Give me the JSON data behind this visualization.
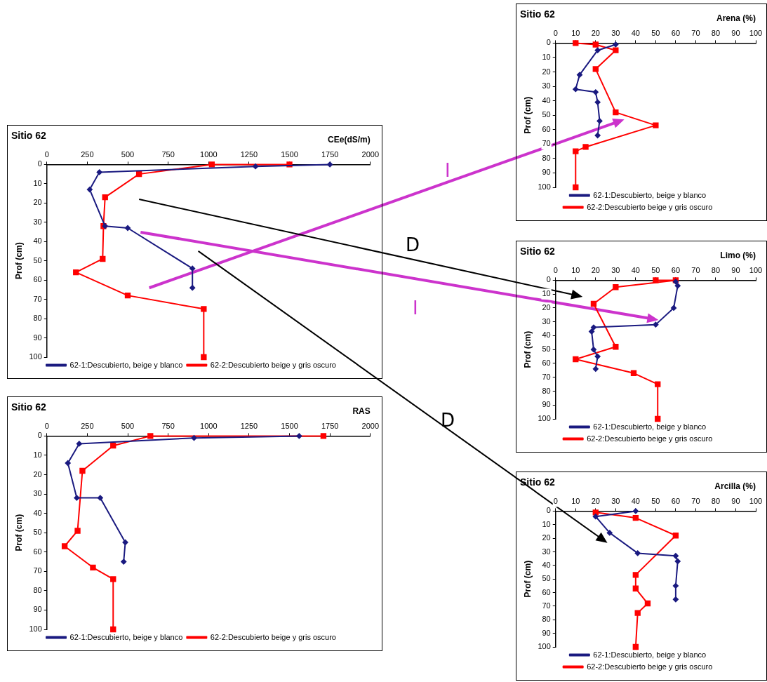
{
  "chart_data": [
    {
      "type": "line",
      "title": "Sitio 62",
      "xlabel": "Arena (%)",
      "ylabel": "Prof (cm)",
      "xlim": [
        0,
        100
      ],
      "xticks": [
        0,
        10,
        20,
        30,
        40,
        50,
        60,
        70,
        80,
        90,
        100
      ],
      "ylim": [
        100,
        0
      ],
      "yticks": [
        0,
        10,
        20,
        30,
        40,
        50,
        60,
        70,
        80,
        90,
        100
      ],
      "grid": false,
      "legend": "bottom",
      "series": [
        {
          "name": "62-1:Descubierto, beige y blanco",
          "color": "#1a1a80",
          "marker": "diamond",
          "x": [
            30,
            21,
            12,
            10,
            20,
            21,
            22,
            21
          ],
          "values": [
            1,
            5,
            22,
            32,
            34,
            41,
            54,
            64
          ]
        },
        {
          "name": "62-2:Descubierto beige y gris oscuro",
          "color": "#ff0000",
          "marker": "square",
          "x": [
            10,
            20,
            30,
            20,
            30,
            50,
            15,
            10,
            10
          ],
          "values": [
            0,
            1,
            5,
            18,
            48,
            57,
            72,
            75,
            100
          ]
        }
      ]
    },
    {
      "type": "line",
      "title": "Sitio 62",
      "xlabel": "CEe(dS/m)",
      "ylabel": "Prof (cm)",
      "xlim": [
        0,
        2000
      ],
      "xticks": [
        0,
        250,
        500,
        750,
        1000,
        1250,
        1500,
        1750,
        2000
      ],
      "ylim": [
        100,
        0
      ],
      "yticks": [
        0,
        10,
        20,
        30,
        40,
        50,
        60,
        70,
        80,
        90,
        100
      ],
      "grid": false,
      "legend": "bottom",
      "annotations": [
        "I",
        "D",
        "I",
        "D"
      ],
      "series": [
        {
          "name": "62-1:Descubierto, beige y blanco",
          "color": "#1a1a80",
          "marker": "diamond",
          "x": [
            1750,
            1290,
            325,
            265,
            360,
            500,
            900,
            900
          ],
          "values": [
            0,
            1,
            4,
            13,
            32,
            33,
            54,
            64
          ]
        },
        {
          "name": "62-2:Descubierto beige y gris oscuro",
          "color": "#ff0000",
          "marker": "square",
          "x": [
            1500,
            1020,
            570,
            360,
            350,
            345,
            180,
            500,
            970,
            970
          ],
          "values": [
            0,
            0,
            5,
            17,
            32,
            49,
            56,
            68,
            75,
            100
          ]
        }
      ]
    },
    {
      "type": "line",
      "title": "Sitio 62",
      "xlabel": "Limo (%)",
      "ylabel": "Prof (cm)",
      "xlim": [
        0,
        100
      ],
      "xticks": [
        0,
        10,
        20,
        30,
        40,
        50,
        60,
        70,
        80,
        90,
        100
      ],
      "ylim": [
        100,
        0
      ],
      "yticks": [
        0,
        10,
        20,
        30,
        40,
        50,
        60,
        70,
        80,
        90,
        100
      ],
      "grid": false,
      "legend": "bottom",
      "series": [
        {
          "name": "62-1:Descubierto, beige y blanco",
          "color": "#1a1a80",
          "marker": "diamond",
          "x": [
            60,
            61,
            59,
            50,
            19,
            18,
            19,
            21,
            20
          ],
          "values": [
            1,
            4,
            20,
            32,
            34,
            37,
            50,
            55,
            64
          ]
        },
        {
          "name": "62-2:Descubierto beige y gris oscuro",
          "color": "#ff0000",
          "marker": "square",
          "x": [
            50,
            60,
            30,
            19,
            30,
            10,
            39,
            51,
            51
          ],
          "values": [
            0,
            0,
            5,
            17,
            48,
            57,
            67,
            75,
            100
          ]
        }
      ]
    },
    {
      "type": "line",
      "title": "Sitio 62",
      "xlabel": "RAS",
      "ylabel": "Prof (cm)",
      "xlim": [
        0,
        2000
      ],
      "xticks": [
        0,
        250,
        500,
        750,
        1000,
        1250,
        1500,
        1750,
        2000
      ],
      "ylim": [
        100,
        0
      ],
      "yticks": [
        0,
        10,
        20,
        30,
        40,
        50,
        60,
        70,
        80,
        90,
        100
      ],
      "grid": false,
      "legend": "bottom",
      "series": [
        {
          "name": "62-1:Descubierto, beige y blanco",
          "color": "#1a1a80",
          "marker": "diamond",
          "x": [
            1560,
            910,
            200,
            130,
            185,
            330,
            485,
            475
          ],
          "values": [
            0,
            1,
            4,
            14,
            32,
            32,
            55,
            65
          ]
        },
        {
          "name": "62-2:Descubierto beige y gris oscuro",
          "color": "#ff0000",
          "marker": "square",
          "x": [
            1710,
            640,
            410,
            220,
            190,
            110,
            285,
            410,
            410
          ],
          "values": [
            0,
            0,
            5,
            18,
            49,
            57,
            68,
            74,
            100
          ]
        }
      ]
    },
    {
      "type": "line",
      "title": "Sitio 62",
      "xlabel": "Arcilla (%)",
      "ylabel": "Prof (cm)",
      "xlim": [
        0,
        100
      ],
      "xticks": [
        0,
        10,
        20,
        30,
        40,
        50,
        60,
        70,
        80,
        90,
        100
      ],
      "ylim": [
        100,
        0
      ],
      "yticks": [
        0,
        10,
        20,
        30,
        40,
        50,
        60,
        70,
        80,
        90,
        100
      ],
      "grid": false,
      "legend": "bottom",
      "series": [
        {
          "name": "62-1:Descubierto, beige y blanco",
          "color": "#1a1a80",
          "marker": "diamond",
          "x": [
            40,
            20,
            27,
            41,
            60,
            61,
            60,
            60
          ],
          "values": [
            0,
            4,
            16,
            31,
            33,
            37,
            55,
            65
          ]
        },
        {
          "name": "62-2:Descubierto beige y gris oscuro",
          "color": "#ff0000",
          "marker": "square",
          "x": [
            20,
            40,
            60,
            40,
            40,
            46,
            41,
            40
          ],
          "values": [
            1,
            5,
            18,
            47,
            57,
            68,
            75,
            100
          ]
        }
      ]
    }
  ]
}
